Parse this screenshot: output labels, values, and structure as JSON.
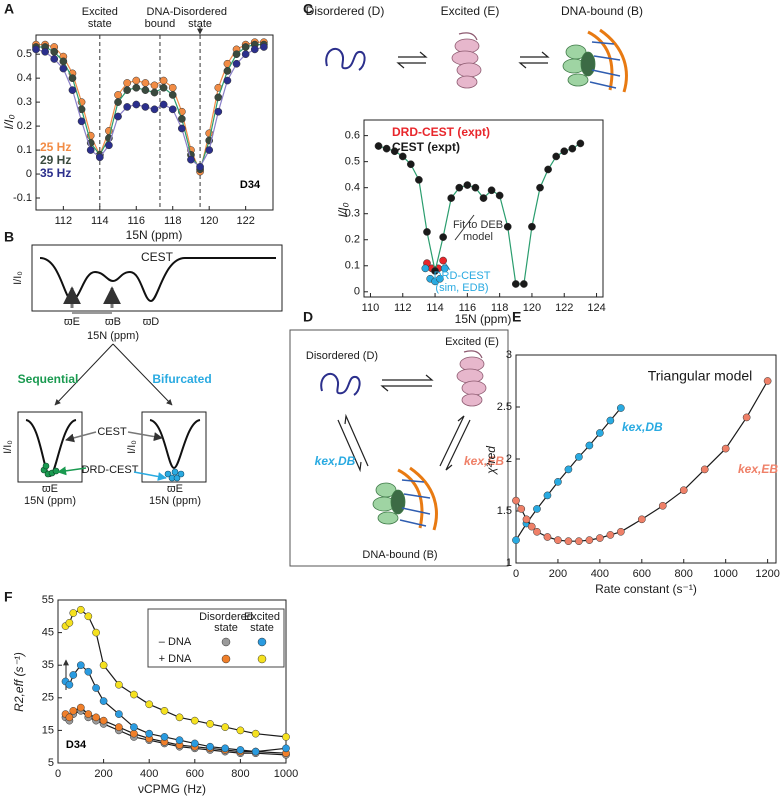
{
  "panels": [
    "A",
    "B",
    "C",
    "D",
    "E",
    "F"
  ],
  "panel_b": {
    "title": "CEST",
    "ylabel": "I/I₀",
    "ticks": [
      "ϖE",
      "ϖB",
      "ϖD"
    ],
    "xlabel": "15N (ppm)",
    "branches": [
      {
        "title": "Sequential",
        "ylabel": "I/I₀",
        "xlabel": "15N (ppm)",
        "tick": "ϖE"
      },
      {
        "title": "Bifurcated",
        "ylabel": "I/I₀",
        "xlabel": "15N (ppm)",
        "tick": "ϖE"
      }
    ],
    "curve_label": "CEST",
    "points_label": "DRD-CEST"
  },
  "panel_c_scheme": {
    "states": [
      "Disordered (D)",
      "Excited (E)",
      "DNA-bound (B)"
    ]
  },
  "panel_d": {
    "states": [
      "Disordered (D)",
      "Excited (E)",
      "DNA-bound (B)"
    ],
    "rates": [
      "kex,DB",
      "kex,EB"
    ]
  },
  "chart_data": [
    {
      "type": "scatter",
      "xlabel": "15N (ppm)",
      "ylabel": "I/I₀",
      "xlim": [
        110.5,
        123.5
      ],
      "xticks": [
        112,
        114,
        116,
        118,
        120,
        122
      ],
      "ylim": [
        -0.15,
        0.58
      ],
      "yticks": [
        -0.1,
        0,
        0.1,
        0.2,
        0.3,
        0.4,
        0.5
      ],
      "legend": "lower left",
      "x": [
        110.5,
        111,
        111.5,
        112,
        112.5,
        113,
        113.5,
        114,
        114.5,
        115,
        115.5,
        116,
        116.5,
        117,
        117.5,
        118,
        118.5,
        119,
        119.5,
        120,
        120.5,
        121,
        121.5,
        122,
        122.5,
        123
      ],
      "series": [
        {
          "name": "25 Hz",
          "color": "#f28c45",
          "line_color": "#f28c45",
          "values": [
            0.54,
            0.54,
            0.53,
            0.49,
            0.42,
            0.3,
            0.16,
            0.08,
            0.18,
            0.33,
            0.38,
            0.39,
            0.38,
            0.37,
            0.39,
            0.36,
            0.26,
            0.1,
            0.01,
            0.17,
            0.36,
            0.46,
            0.52,
            0.54,
            0.55,
            0.55
          ]
        },
        {
          "name": "29 Hz",
          "color": "#3a4a3e",
          "line_color": "#2a9d6e",
          "values": [
            0.53,
            0.53,
            0.51,
            0.47,
            0.4,
            0.27,
            0.13,
            0.08,
            0.15,
            0.3,
            0.35,
            0.36,
            0.35,
            0.34,
            0.36,
            0.33,
            0.23,
            0.08,
            0.02,
            0.14,
            0.32,
            0.43,
            0.5,
            0.53,
            0.54,
            0.54
          ]
        },
        {
          "name": "35 Hz",
          "color": "#2b2f8c",
          "line_color": "#8a7fc8",
          "values": [
            0.52,
            0.51,
            0.48,
            0.44,
            0.35,
            0.22,
            0.1,
            0.07,
            0.12,
            0.24,
            0.28,
            0.29,
            0.28,
            0.27,
            0.29,
            0.27,
            0.19,
            0.06,
            0.03,
            0.1,
            0.26,
            0.39,
            0.46,
            0.5,
            0.52,
            0.53
          ]
        }
      ],
      "vlines": [
        {
          "x": 114,
          "label": [
            "Excited",
            "state"
          ]
        },
        {
          "x": 117.3,
          "label": [
            "DNA-",
            "bound"
          ]
        },
        {
          "x": 119.5,
          "label": [
            "Disordered",
            "state"
          ]
        }
      ],
      "annotations": [
        {
          "lines": [
            "D34"
          ],
          "color": "#000000"
        }
      ]
    },
    {
      "type": "scatter",
      "xlabel": "15N (ppm)",
      "ylabel": "I/I₀",
      "xlim": [
        109.6,
        124.4
      ],
      "xticks": [
        110,
        112,
        114,
        116,
        118,
        120,
        122,
        124
      ],
      "ylim": [
        -0.02,
        0.66
      ],
      "yticks": [
        0,
        0.1,
        0.2,
        0.3,
        0.4,
        0.5,
        0.6
      ],
      "legend": "upper left",
      "x": [
        110.5,
        111,
        111.5,
        112,
        112.5,
        113,
        113.5,
        114,
        114.5,
        115,
        115.5,
        116,
        116.5,
        117,
        117.5,
        118,
        118.5,
        119,
        119.5,
        120,
        120.5,
        121,
        121.5,
        122,
        122.5,
        123
      ],
      "series": [
        {
          "name": "DRD-CEST (expt)",
          "color": "#e8262b",
          "x": [
            113.5,
            113.8,
            114.2,
            114.5
          ],
          "values": [
            0.11,
            0.09,
            0.09,
            0.12
          ]
        },
        {
          "name": "CEST (expt)",
          "color": "#1a1a1a",
          "line_color": "#2a9d6e",
          "values": [
            0.56,
            0.55,
            0.54,
            0.52,
            0.49,
            0.43,
            0.23,
            0.08,
            0.21,
            0.36,
            0.4,
            0.41,
            0.4,
            0.36,
            0.39,
            0.37,
            0.25,
            0.03,
            0.03,
            0.25,
            0.4,
            0.47,
            0.52,
            0.54,
            0.55,
            0.57
          ]
        },
        {
          "color": "#29aae1",
          "x": [
            113.4,
            113.7,
            114.0,
            114.3,
            114.6
          ],
          "values": [
            0.09,
            0.05,
            0.04,
            0.05,
            0.09
          ]
        }
      ],
      "annotations": [
        {
          "lines": [
            "Fit to DEB",
            "model"
          ],
          "color": "#333333"
        },
        {
          "lines": [
            "DRD-CEST",
            "(sim, EDB)"
          ],
          "color": "#29aae1"
        }
      ]
    },
    {
      "type": "scatter",
      "title": "Triangular model",
      "xlabel": "Rate constant (s⁻¹)",
      "ylabel": "χ²red",
      "xlim": [
        0,
        1240
      ],
      "xticks": [
        0,
        200,
        400,
        600,
        800,
        1000,
        1200
      ],
      "ylim": [
        1,
        3
      ],
      "yticks": [
        1,
        1.5,
        2,
        2.5,
        3
      ],
      "legend": "inline",
      "series": [
        {
          "name": "kex,DB",
          "color": "#29aae1",
          "line_color": "#1a1a1a",
          "x": [
            0,
            50,
            100,
            150,
            200,
            250,
            300,
            350,
            400,
            450,
            500
          ],
          "values": [
            1.22,
            1.38,
            1.52,
            1.65,
            1.78,
            1.9,
            2.02,
            2.13,
            2.25,
            2.37,
            2.49
          ]
        },
        {
          "name": "kex,EB",
          "color": "#ef8068",
          "line_color": "#1a1a1a",
          "x": [
            0,
            25,
            50,
            75,
            100,
            150,
            200,
            250,
            300,
            350,
            400,
            450,
            500,
            600,
            700,
            800,
            900,
            1000,
            1100,
            1200
          ],
          "values": [
            1.6,
            1.52,
            1.42,
            1.35,
            1.3,
            1.25,
            1.22,
            1.21,
            1.21,
            1.22,
            1.24,
            1.27,
            1.3,
            1.42,
            1.55,
            1.7,
            1.9,
            2.1,
            2.4,
            2.75
          ]
        }
      ]
    },
    {
      "type": "scatter",
      "xlabel": "νCPMG (Hz)",
      "ylabel": "R2,eff (s⁻¹)",
      "xlim": [
        0,
        1000
      ],
      "xticks": [
        0,
        200,
        400,
        600,
        800,
        1000
      ],
      "ylim": [
        5,
        55
      ],
      "yticks": [
        5,
        15,
        25,
        35,
        45,
        55
      ],
      "legend": "table",
      "legend_table": {
        "columns": [
          [
            "Disordered",
            "state"
          ],
          [
            "Excited",
            "state"
          ]
        ],
        "rows": [
          "– DNA",
          "+ DNA"
        ]
      },
      "x": [
        33,
        50,
        67,
        100,
        133,
        167,
        200,
        267,
        333,
        400,
        467,
        533,
        600,
        667,
        733,
        800,
        867,
        1000
      ],
      "series": [
        {
          "cell": [
            0,
            0
          ],
          "color": "#9a9a9a",
          "line_color": "#1a1a1a",
          "values": [
            19,
            18,
            20,
            21,
            19,
            18,
            17,
            15,
            13,
            12,
            11,
            10,
            9.5,
            9,
            8.5,
            8,
            8,
            7.5
          ]
        },
        {
          "cell": [
            1,
            0
          ],
          "color": "#f07f2a",
          "line_color": "#1a1a1a",
          "values": [
            20,
            19,
            21,
            22,
            20,
            19,
            18,
            16,
            14,
            12.5,
            11.5,
            10.5,
            10,
            9.5,
            9,
            8.5,
            8.5,
            8
          ]
        },
        {
          "cell": [
            0,
            1
          ],
          "color": "#2a9be0",
          "line_color": "#1a1a1a",
          "values": [
            30,
            29,
            32,
            35,
            33,
            28,
            24,
            20,
            16,
            14,
            13,
            12,
            11,
            10,
            9.5,
            9,
            8.5,
            9.5
          ]
        },
        {
          "cell": [
            1,
            1
          ],
          "color": "#f5e11f",
          "line_color": "#1a1a1a",
          "values": [
            47,
            48,
            51,
            52,
            50,
            45,
            35,
            29,
            26,
            23,
            21,
            19,
            18,
            17,
            16,
            15,
            14,
            13
          ]
        }
      ],
      "annotations": [
        {
          "lines": [
            "D34"
          ],
          "color": "#000000"
        }
      ]
    }
  ]
}
